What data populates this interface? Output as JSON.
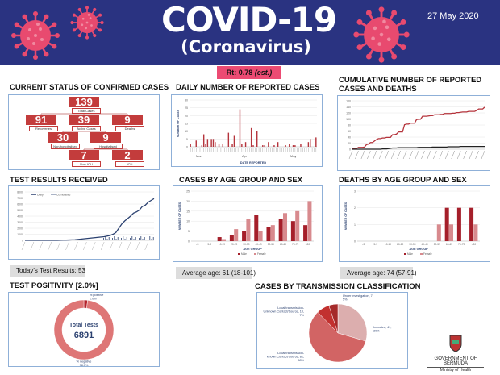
{
  "header": {
    "title": "COVID-19",
    "subtitle": "(Coronavirus)",
    "date": "27 May 2020",
    "rt": "Rt: 0.78",
    "rt_est": "(est.)",
    "colors": {
      "banner": "#2a3381",
      "virus": "#e84a6f"
    }
  },
  "status": {
    "title": "CURRENT STATUS OF CONFIRMED CASES",
    "boxes": [
      {
        "value": "139",
        "label": "Total Cases"
      },
      {
        "value": "91",
        "label": "Recoveries"
      },
      {
        "value": "39",
        "label": "Active Cases"
      },
      {
        "value": "9",
        "label": "Deaths"
      },
      {
        "value": "30",
        "label": "Non-hospitalised"
      },
      {
        "value": "9",
        "label": "Hospitalised"
      },
      {
        "value": "7",
        "label": "Non-ICU"
      },
      {
        "value": "2",
        "label": "ICU"
      }
    ]
  },
  "daily": {
    "title": "DAILY NUMBER OF REPORTED CASES",
    "months": [
      "Mar",
      "Apr",
      "May"
    ]
  },
  "cumulative": {
    "title": "CUMULATIVE NUMBER OF REPORTED CASES AND DEATHS"
  },
  "tests": {
    "title": "TEST RESULTS RECEIVED",
    "today": "Today's Test Results: 53"
  },
  "age": {
    "title": "CASES BY AGE GROUP AND SEX",
    "average": "Average age: 61 (18-101)"
  },
  "deaths_age": {
    "title": "DEATHS BY AGE GROUP AND SEX",
    "average": "Average age: 74 (57-91)"
  },
  "positivity": {
    "title": "TEST POSITIVITY [2.0%]",
    "center_label": "Total Tests",
    "center_value": "6891"
  },
  "transmission": {
    "title": "CASES BY TRANSMISSION CLASSIFICATION"
  },
  "footer": {
    "org": "GOVERNMENT OF BERMUDA",
    "dept": "Ministry of Health"
  },
  "chart_data": [
    {
      "id": "daily",
      "type": "bar",
      "title": "DAILY NUMBER OF REPORTED CASES",
      "xlabel": "DATE REPORTED",
      "ylabel": "NUMBER OF CASES",
      "ylim": [
        0,
        30
      ],
      "yticks": [
        0,
        5,
        10,
        15,
        20,
        25,
        30
      ],
      "grid": true,
      "values": [
        2,
        0,
        0,
        4,
        0,
        0,
        1,
        8,
        2,
        5,
        0,
        5,
        5,
        3,
        0,
        2,
        0,
        2,
        0,
        0,
        9,
        0,
        2,
        7,
        0,
        0,
        24,
        2,
        0,
        3,
        0,
        0,
        12,
        1,
        0,
        10,
        0,
        0,
        1,
        1,
        0,
        3,
        0,
        0,
        1,
        0,
        3,
        0,
        0,
        0,
        1,
        0,
        2,
        0,
        1,
        1,
        0,
        0,
        2,
        0,
        0,
        0,
        3,
        5,
        0,
        0,
        6
      ],
      "color": "#b5343c"
    },
    {
      "id": "cumulative",
      "type": "line",
      "ylim": [
        0,
        160
      ],
      "yticks": [
        0,
        20,
        40,
        60,
        80,
        100,
        120,
        140,
        160
      ],
      "grid": true,
      "series": [
        {
          "color": "#b5343c",
          "values": [
            2,
            2,
            2,
            6,
            6,
            6,
            7,
            15,
            17,
            22,
            22,
            27,
            32,
            35,
            35,
            37,
            37,
            39,
            39,
            39,
            48,
            48,
            50,
            57,
            57,
            57,
            81,
            83,
            83,
            86,
            86,
            86,
            98,
            99,
            99,
            109,
            109,
            109,
            110,
            111,
            111,
            114,
            114,
            114,
            115,
            115,
            118,
            118,
            118,
            118,
            119,
            119,
            121,
            121,
            122,
            123,
            123,
            123,
            125,
            125,
            125,
            125,
            128,
            133,
            133,
            133,
            139
          ]
        },
        {
          "color": "#222",
          "values": [
            0,
            0,
            0,
            0,
            0,
            0,
            0,
            0,
            0,
            0,
            0,
            0,
            0,
            0,
            0,
            1,
            1,
            1,
            2,
            3,
            4,
            4,
            4,
            5,
            5,
            5,
            5,
            5,
            5,
            5,
            5,
            5,
            5,
            6,
            6,
            6,
            6,
            6,
            6,
            6,
            7,
            7,
            7,
            7,
            7,
            7,
            7,
            7,
            8,
            8,
            8,
            8,
            8,
            8,
            9,
            9,
            9,
            9,
            9,
            9,
            9,
            9,
            9,
            9,
            9,
            9,
            9
          ]
        }
      ]
    },
    {
      "id": "tests",
      "type": "line",
      "ylim": [
        0,
        8000
      ],
      "yticks": [
        0,
        1000,
        2000,
        3000,
        4000,
        5000,
        6000,
        7000,
        8000
      ],
      "legend": [
        "Daily",
        "Cumulative"
      ],
      "legend_position": "top-left",
      "grid": true,
      "series": [
        {
          "name": "Cumulative",
          "color": "#2b4170",
          "values": [
            0,
            0,
            0,
            0,
            0,
            0,
            0,
            0,
            0,
            0,
            0,
            10,
            20,
            30,
            40,
            60,
            80,
            100,
            150,
            200,
            250,
            300,
            350,
            400,
            450,
            500,
            550,
            600,
            700,
            800,
            1000,
            1300,
            2000,
            2700,
            3200,
            3600,
            4000,
            4500,
            4700,
            5000,
            5600,
            5800,
            6300,
            6600,
            6891
          ]
        }
      ]
    },
    {
      "id": "age",
      "type": "bar",
      "xlabel": "AGE GROUP",
      "ylabel": "NUMBER OF CASES",
      "ylim": [
        0,
        25
      ],
      "yticks": [
        0,
        5,
        10,
        15,
        20,
        25
      ],
      "legend_position": "bottom",
      "categories": [
        "<5",
        "5-9",
        "10-19",
        "20-29",
        "30-39",
        "40-49",
        "50-59",
        "60-69",
        "70-79",
        ">80"
      ],
      "series": [
        {
          "name": "Male",
          "color": "#a51f2a",
          "values": [
            0,
            0,
            2,
            3,
            5,
            13,
            7,
            11,
            10,
            8
          ]
        },
        {
          "name": "Female",
          "color": "#d88a8e",
          "values": [
            0,
            0,
            1,
            6,
            11,
            5,
            8,
            14,
            15,
            20
          ]
        }
      ]
    },
    {
      "id": "deaths_age",
      "type": "bar",
      "xlabel": "AGE GROUP",
      "ylabel": "NUMBER OF CASES",
      "ylim": [
        0,
        3
      ],
      "yticks": [
        0,
        1,
        2,
        3
      ],
      "legend_position": "bottom",
      "categories": [
        "<5",
        "5-9",
        "10-19",
        "20-29",
        "30-39",
        "40-49",
        "50-59",
        "60-69",
        "70-79",
        ">80"
      ],
      "series": [
        {
          "name": "Male",
          "color": "#a51f2a",
          "values": [
            0,
            0,
            0,
            0,
            0,
            0,
            0,
            2,
            2,
            2
          ]
        },
        {
          "name": "Female",
          "color": "#d88a8e",
          "values": [
            0,
            0,
            0,
            0,
            0,
            0,
            1,
            1,
            0,
            1
          ]
        }
      ]
    },
    {
      "id": "positivity",
      "type": "pie",
      "slices": [
        {
          "label": "% positive",
          "pct": "2.0%",
          "value": 2.0,
          "color": "#b5232b"
        },
        {
          "label": "% negative",
          "pct": "98.0%",
          "value": 98.0,
          "color": "#de7676"
        }
      ]
    },
    {
      "id": "transmission",
      "type": "pie",
      "slices": [
        {
          "label": "Imported",
          "value": 41,
          "pct": "30%",
          "color": "#dcaeae"
        },
        {
          "label": "Local transmission-Known Contact/Source",
          "value": 81,
          "pct": "58%",
          "color": "#d26464"
        },
        {
          "label": "Local transmission-Unknown Contact/Source",
          "value": 10,
          "pct": "7%",
          "color": "#c2312f"
        },
        {
          "label": "Under investigation",
          "value": 7,
          "pct": "5%",
          "color": "#a52a2a"
        }
      ]
    }
  ]
}
